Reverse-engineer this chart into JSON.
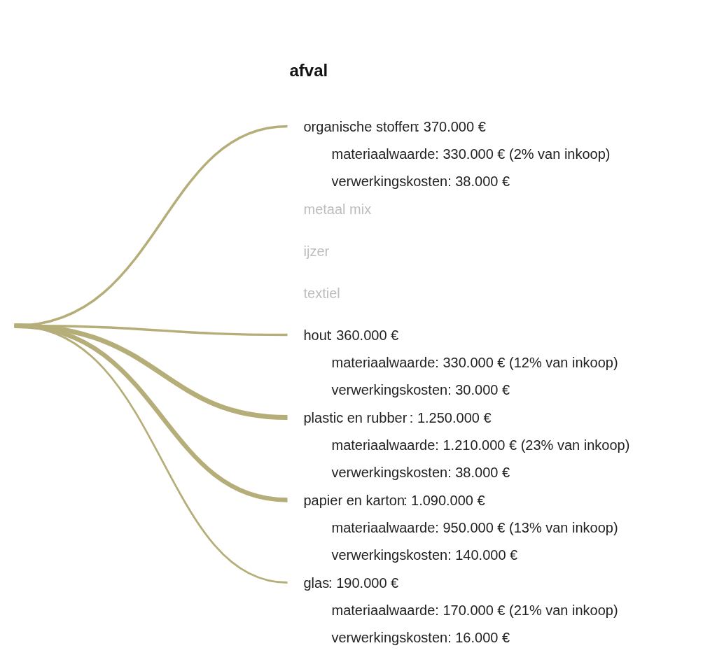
{
  "chart_data": {
    "type": "other",
    "title": "afval",
    "categories": [
      "organische stoffen",
      "metaal mix",
      "ijzer",
      "textiel",
      "hout",
      "plastic en rubber",
      "papier en karton",
      "glas"
    ],
    "values": [
      370000,
      null,
      null,
      null,
      360000,
      1250000,
      1090000,
      190000
    ],
    "value_labels": [
      ": 370.000 €",
      null,
      null,
      null,
      ": 360.000 €",
      ": 1.250.000 €",
      ": 1.090.000 €",
      ": 190.000 €"
    ],
    "colors": [
      "#b5ae78",
      "#bdbdbd",
      "#bdbdbd",
      "#bdbdbd",
      "#b5ae78",
      "#b5ae78",
      "#b5ae78",
      "#b5ae78"
    ],
    "annotations": [
      {
        "text": "materiaalwaarde: 330.000 € (2% van inkoop)",
        "x": "organische stoffen"
      },
      {
        "text": "verwerkingskosten: 38.000 €",
        "x": "organische stoffen"
      },
      {
        "text": "materiaalwaarde: 330.000 € (12% van inkoop)",
        "x": "hout"
      },
      {
        "text": "verwerkingskosten: 30.000 €",
        "x": "hout"
      },
      {
        "text": "materiaalwaarde: 1.210.000 € (23% van inkoop)",
        "x": "plastic en rubber"
      },
      {
        "text": "verwerkingskosten: 38.000 €",
        "x": "plastic en rubber"
      },
      {
        "text": "materiaalwaarde: 950.000 € (13% van inkoop)",
        "x": "papier en karton"
      },
      {
        "text": "verwerkingskosten: 140.000 €",
        "x": "papier en karton"
      },
      {
        "text": "materiaalwaarde: 170.000 € (21% van inkoop)",
        "x": "glas"
      },
      {
        "text": "verwerkingskosten: 16.000 €",
        "x": "glas"
      }
    ]
  }
}
